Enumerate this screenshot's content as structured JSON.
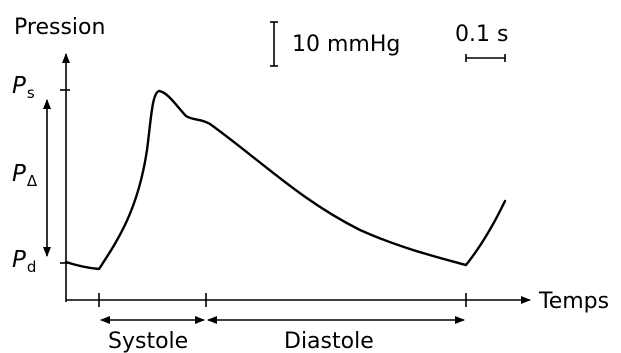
{
  "axis": {
    "y_label": "Pression",
    "x_label": "Temps"
  },
  "scale_bars": {
    "pressure": "10 mmHg",
    "time": "0.1 s"
  },
  "levels": {
    "systolic": {
      "symbol": "P",
      "subscript": "s"
    },
    "pulse": {
      "symbol": "P",
      "subscript": "Δ"
    },
    "diastolic": {
      "symbol": "P",
      "subscript": "d"
    }
  },
  "phases": {
    "systole": "Systole",
    "diastole": "Diastole"
  }
}
